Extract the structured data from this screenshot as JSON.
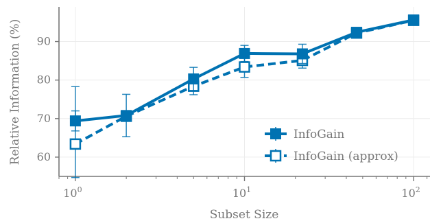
{
  "chart_data": {
    "type": "line",
    "title": "",
    "xlabel": "Subset Size",
    "ylabel": "Relative Information (%)",
    "xscale": "log",
    "xlim": [
      0.8,
      125
    ],
    "ylim": [
      55,
      99
    ],
    "yticks": [
      60,
      70,
      80,
      90
    ],
    "xticks": [
      {
        "value": 1,
        "base": "10",
        "exp": "0"
      },
      {
        "value": 10,
        "base": "10",
        "exp": "1"
      },
      {
        "value": 100,
        "base": "10",
        "exp": "2"
      }
    ],
    "grid": true,
    "legend_position": "bottom-right",
    "series": [
      {
        "name": "InfoGain",
        "color": "#0072b2",
        "marker": "filled-square",
        "linestyle": "solid",
        "points": [
          {
            "x": 1,
            "y": 69.4,
            "lo": 66.8,
            "hi": 72.0
          },
          {
            "x": 2,
            "y": 70.8,
            "lo": 65.3,
            "hi": 76.3
          },
          {
            "x": 5,
            "y": 80.3,
            "lo": 77.3,
            "hi": 83.3
          },
          {
            "x": 10,
            "y": 86.9,
            "lo": 84.8,
            "hi": 89.0
          },
          {
            "x": 22,
            "y": 86.8,
            "lo": 84.3,
            "hi": 89.3
          },
          {
            "x": 46,
            "y": 92.4,
            "lo": 91.4,
            "hi": 93.4
          },
          {
            "x": 100,
            "y": 95.6,
            "lo": 94.9,
            "hi": 96.3
          }
        ]
      },
      {
        "name": "InfoGain (approx)",
        "color": "#0072b2",
        "marker": "open-square",
        "linestyle": "dashed",
        "points": [
          {
            "x": 1,
            "y": 63.4,
            "lo": 54.7,
            "hi": 78.3
          },
          {
            "x": 2,
            "y": 70.6,
            "lo": 70.0,
            "hi": 71.2
          },
          {
            "x": 5,
            "y": 78.4,
            "lo": 76.2,
            "hi": 80.6
          },
          {
            "x": 10,
            "y": 83.4,
            "lo": 80.7,
            "hi": 86.1
          },
          {
            "x": 22,
            "y": 85.1,
            "lo": 83.1,
            "hi": 87.1
          },
          {
            "x": 46,
            "y": 92.2,
            "lo": 91.5,
            "hi": 92.9
          },
          {
            "x": 100,
            "y": 95.5,
            "lo": 95.0,
            "hi": 96.0
          }
        ]
      }
    ]
  }
}
